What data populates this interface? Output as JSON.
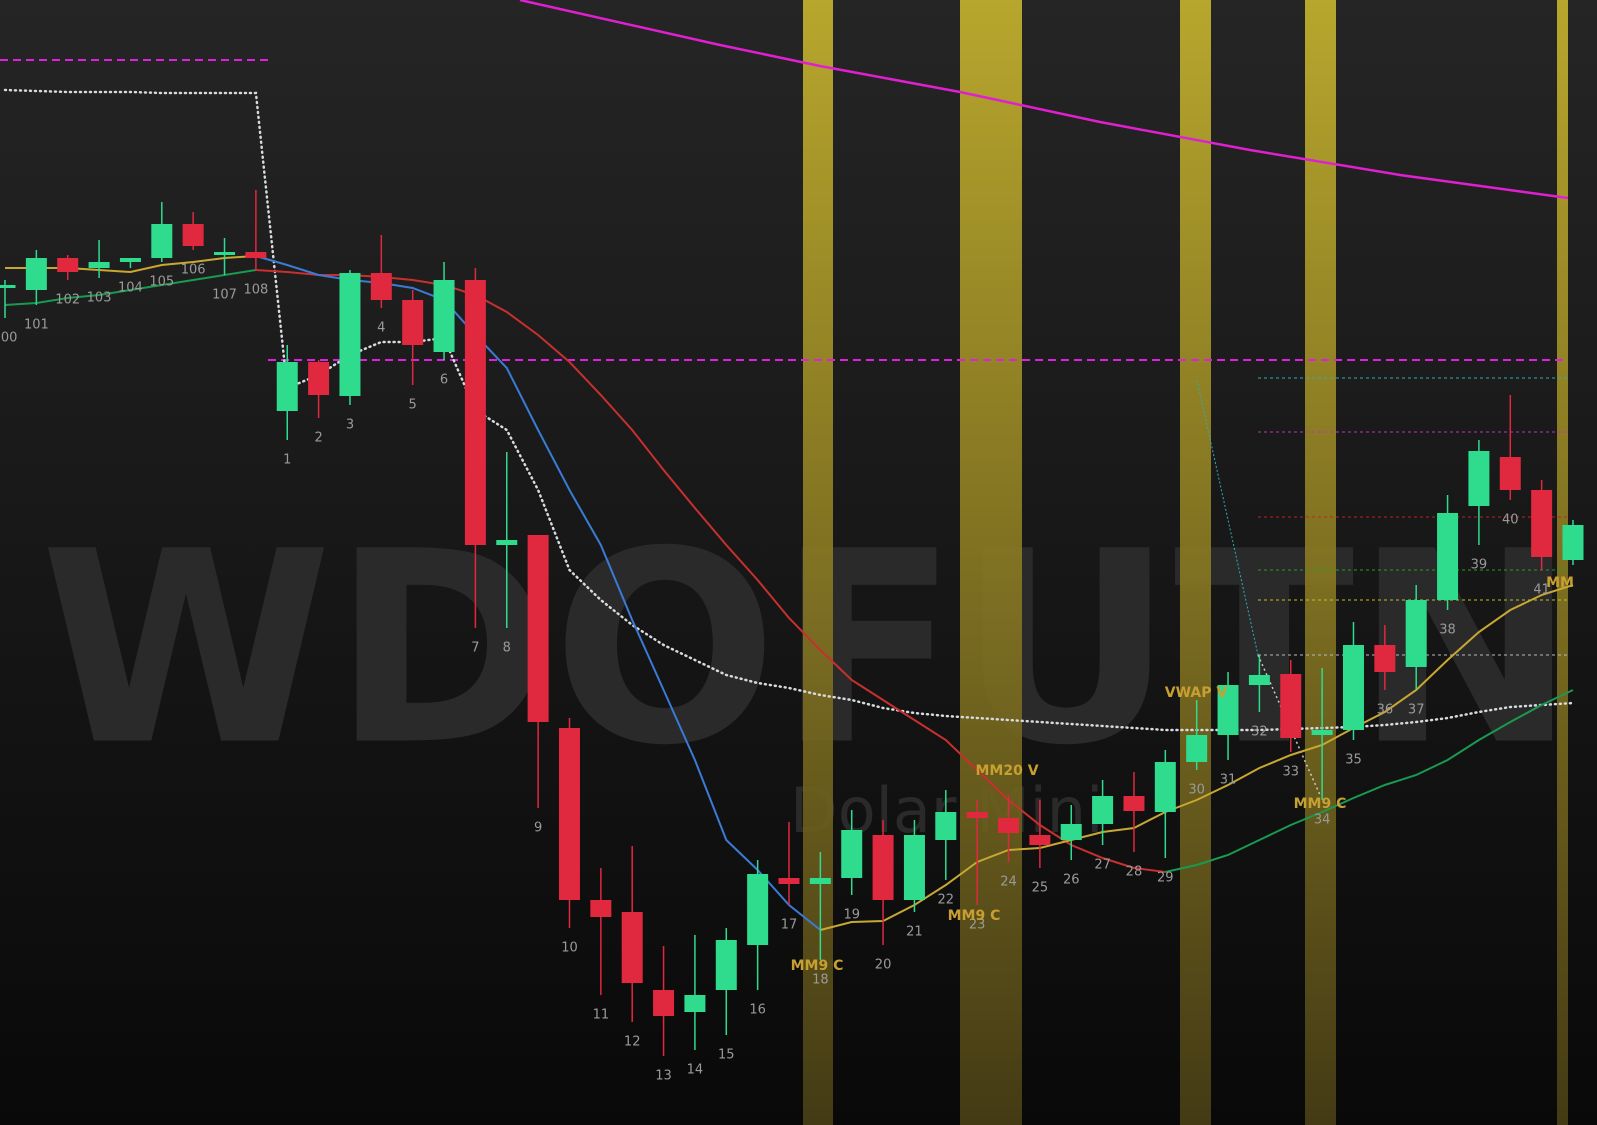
{
  "chart_data": {
    "type": "candlestick",
    "watermark": "WDOFUTN",
    "watermark_subtitle": "Dolar Mini",
    "categories": [
      "100",
      "101",
      "102",
      "103",
      "104",
      "105",
      "106",
      "107",
      "108",
      "1",
      "2",
      "3",
      "4",
      "5",
      "6",
      "7",
      "8",
      "9",
      "10",
      "11",
      "12",
      "13",
      "14",
      "15",
      "16",
      "17",
      "18",
      "19",
      "20",
      "21",
      "22",
      "23",
      "24",
      "25",
      "26",
      "27",
      "28",
      "29",
      "30",
      "31",
      "32",
      "33",
      "34",
      "35",
      "36",
      "37",
      "38",
      "39",
      "40",
      "41",
      null
    ],
    "open": [
      838,
      835,
      867,
      857,
      863,
      867,
      901,
      871,
      873,
      714,
      763,
      729,
      852,
      825,
      773,
      845,
      580,
      590,
      397,
      225,
      213,
      135,
      113,
      135,
      180,
      247,
      241,
      247,
      290,
      225,
      285,
      313,
      307,
      290,
      285,
      301,
      329,
      313,
      363,
      390,
      440,
      451,
      390,
      395,
      480,
      458,
      525,
      619,
      668,
      635,
      565
    ],
    "high": [
      845,
      875,
      870,
      885,
      867,
      923,
      913,
      887,
      935,
      780,
      765,
      855,
      890,
      835,
      863,
      857,
      673,
      590,
      407,
      257,
      279,
      179,
      190,
      197,
      265,
      303,
      273,
      315,
      305,
      305,
      335,
      325,
      330,
      325,
      320,
      345,
      353,
      375,
      425,
      453,
      470,
      465,
      457,
      503,
      500,
      540,
      630,
      685,
      730,
      645,
      605
    ],
    "low": [
      807,
      820,
      845,
      847,
      857,
      863,
      875,
      850,
      855,
      685,
      707,
      720,
      817,
      740,
      765,
      497,
      497,
      317,
      197,
      130,
      103,
      69,
      75,
      90,
      135,
      220,
      165,
      230,
      180,
      213,
      245,
      220,
      263,
      257,
      265,
      280,
      273,
      267,
      355,
      365,
      413,
      373,
      325,
      385,
      435,
      435,
      515,
      580,
      625,
      555,
      560
    ],
    "close": [
      840,
      867,
      853,
      863,
      867,
      901,
      879,
      873,
      867,
      763,
      730,
      852,
      825,
      780,
      845,
      580,
      585,
      403,
      225,
      208,
      142,
      109,
      130,
      185,
      251,
      241,
      247,
      295,
      225,
      290,
      313,
      307,
      292,
      280,
      301,
      329,
      314,
      363,
      390,
      440,
      450,
      387,
      395,
      480,
      453,
      525,
      612,
      674,
      635,
      568,
      600
    ],
    "up_color": "#2fdc8e",
    "down_color": "#e0283f",
    "ylim": [
      0,
      1125
    ],
    "series": [
      {
        "color": "#d7dade",
        "dotted": true,
        "values": [
          1035,
          1034,
          1033,
          1033,
          1033,
          1032,
          1032,
          1032,
          1032,
          737,
          750,
          770,
          783,
          783,
          787,
          715,
          695,
          635,
          555,
          525,
          500,
          480,
          465,
          450,
          442,
          437,
          430,
          425,
          417,
          412,
          409,
          407,
          405,
          403,
          401,
          399,
          397,
          395,
          395,
          395,
          395,
          396,
          397,
          398,
          400,
          403,
          407,
          413,
          418,
          420,
          422
        ]
      },
      {
        "color": "#c8302f",
        "values": [
          null,
          null,
          null,
          null,
          null,
          null,
          null,
          null,
          855,
          853,
          850,
          850,
          848,
          845,
          840,
          830,
          813,
          790,
          763,
          730,
          695,
          655,
          617,
          580,
          545,
          507,
          475,
          445,
          425,
          405,
          385,
          355,
          325,
          300,
          280,
          267,
          257,
          253,
          null,
          null,
          null,
          null,
          null,
          null,
          null,
          null,
          null,
          null,
          null,
          null,
          null
        ]
      },
      {
        "color": "#1a9a50",
        "values": [
          820,
          822,
          827,
          830,
          835,
          840,
          845,
          850,
          855,
          null,
          null,
          null,
          null,
          null,
          null,
          null,
          null,
          null,
          null,
          null,
          null,
          null,
          null,
          null,
          null,
          null,
          null,
          null,
          null,
          null,
          null,
          null,
          null,
          null,
          null,
          null,
          null,
          253,
          260,
          270,
          285,
          300,
          313,
          327,
          340,
          350,
          365,
          385,
          403,
          420,
          435
        ]
      },
      {
        "color": "#3a7bd5",
        "values": [
          null,
          null,
          null,
          null,
          null,
          null,
          null,
          null,
          869,
          860,
          850,
          845,
          842,
          837,
          825,
          790,
          757,
          695,
          635,
          580,
          505,
          435,
          365,
          285,
          255,
          220,
          195,
          null,
          null,
          null,
          null,
          null,
          null,
          null,
          null,
          null,
          null,
          null,
          null,
          null,
          null,
          null,
          null,
          null,
          null,
          null,
          null,
          null,
          null,
          null,
          null
        ]
      },
      {
        "color": "#c8a832",
        "values": [
          857,
          857,
          857,
          855,
          853,
          860,
          863,
          867,
          869,
          null,
          null,
          null,
          null,
          null,
          null,
          null,
          null,
          null,
          null,
          null,
          null,
          null,
          null,
          null,
          null,
          null,
          195,
          203,
          204,
          220,
          240,
          263,
          275,
          277,
          285,
          293,
          297,
          313,
          325,
          340,
          357,
          370,
          380,
          397,
          413,
          435,
          465,
          493,
          515,
          530,
          540
        ]
      }
    ],
    "levels": [
      {
        "value": 747,
        "color": "#2ab0b0"
      },
      {
        "value": 693,
        "color": "#c030c0"
      },
      {
        "value": 608,
        "color": "#c02020"
      },
      {
        "value": 555,
        "color": "#20a020"
      },
      {
        "value": 525,
        "color": "#c0c020"
      },
      {
        "value": 470,
        "color": "#bbbbbb"
      }
    ],
    "dashed_levels": [
      {
        "value": 1065,
        "color": "#e020e0"
      },
      {
        "value": 765,
        "color": "#e020e0"
      }
    ],
    "annotations": [
      "MM9 C",
      "MM9 C",
      "MM20 V",
      "VWAP V",
      "MM9 C",
      "MM"
    ]
  }
}
